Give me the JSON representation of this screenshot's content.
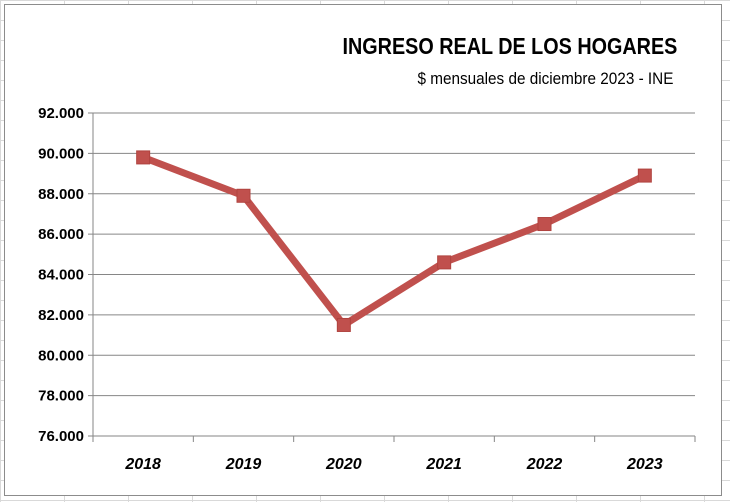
{
  "chart_data": {
    "type": "line",
    "title": "INGRESO REAL DE LOS HOGARES",
    "subtitle": "$ mensuales de diciembre 2023  - INE",
    "xlabel": "",
    "ylabel": "",
    "categories": [
      "2018",
      "2019",
      "2020",
      "2021",
      "2022",
      "2023"
    ],
    "series": [
      {
        "values": [
          89800,
          87900,
          81500,
          84600,
          86500,
          88900
        ]
      }
    ],
    "ylim": [
      76000,
      92000
    ],
    "yticks": [
      76000,
      78000,
      80000,
      82000,
      84000,
      86000,
      88000,
      90000,
      92000
    ],
    "ytick_labels": [
      "76.000",
      "78.000",
      "80.000",
      "82.000",
      "84.000",
      "86.000",
      "88.000",
      "90.000",
      "92.000"
    ],
    "grid": true,
    "legend": "none",
    "colors": {
      "line": "#c0504d",
      "marker": "#c0504d",
      "grid": "#868686"
    }
  }
}
